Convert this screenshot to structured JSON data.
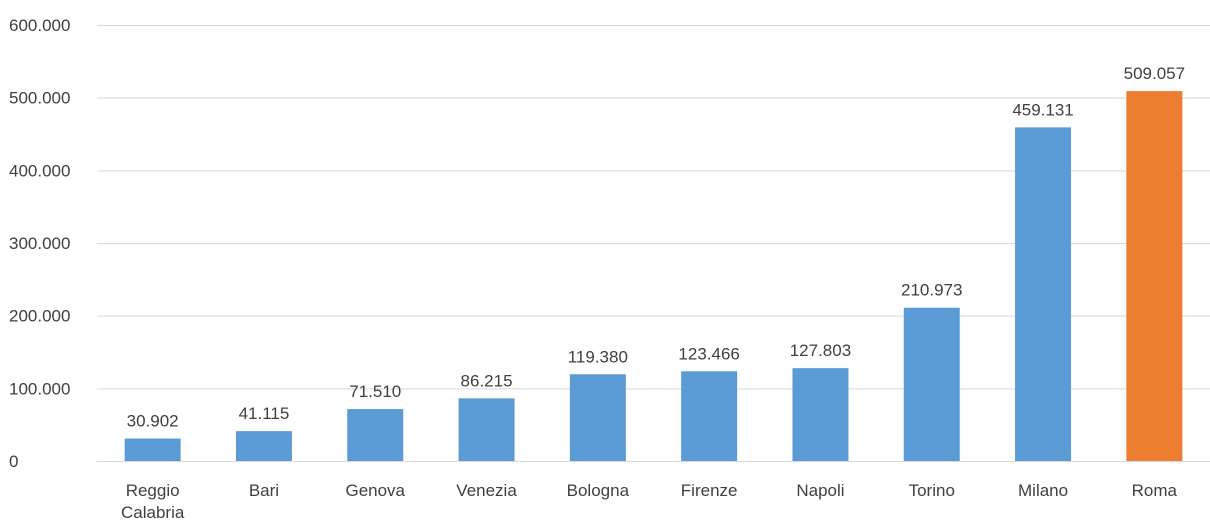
{
  "chart_data": {
    "type": "bar",
    "title": "",
    "xlabel": "",
    "ylabel": "",
    "categories": [
      "Reggio Calabria",
      "Bari",
      "Genova",
      "Venezia",
      "Bologna",
      "Firenze",
      "Napoli",
      "Torino",
      "Milano",
      "Roma"
    ],
    "category_lines": [
      [
        "Reggio",
        "Calabria"
      ],
      [
        "Bari"
      ],
      [
        "Genova"
      ],
      [
        "Venezia"
      ],
      [
        "Bologna"
      ],
      [
        "Firenze"
      ],
      [
        "Napoli"
      ],
      [
        "Torino"
      ],
      [
        "Milano"
      ],
      [
        "Roma"
      ]
    ],
    "values": [
      30902,
      41115,
      71510,
      86215,
      119380,
      123466,
      127803,
      210973,
      459131,
      509057
    ],
    "value_labels": [
      "30.902",
      "41.115",
      "71.510",
      "86.215",
      "119.380",
      "123.466",
      "127.803",
      "210.973",
      "459.131",
      "509.057"
    ],
    "bar_colors": [
      "#5b9bd5",
      "#5b9bd5",
      "#5b9bd5",
      "#5b9bd5",
      "#5b9bd5",
      "#5b9bd5",
      "#5b9bd5",
      "#5b9bd5",
      "#5b9bd5",
      "#ed7d31"
    ],
    "ylim": [
      0,
      600000
    ],
    "yticks": [
      0,
      100000,
      200000,
      300000,
      400000,
      500000,
      600000
    ],
    "ytick_labels": [
      "0",
      "100.000",
      "200.000",
      "300.000",
      "400.000",
      "500.000",
      "600.000"
    ],
    "grid": true,
    "legend": "none"
  }
}
